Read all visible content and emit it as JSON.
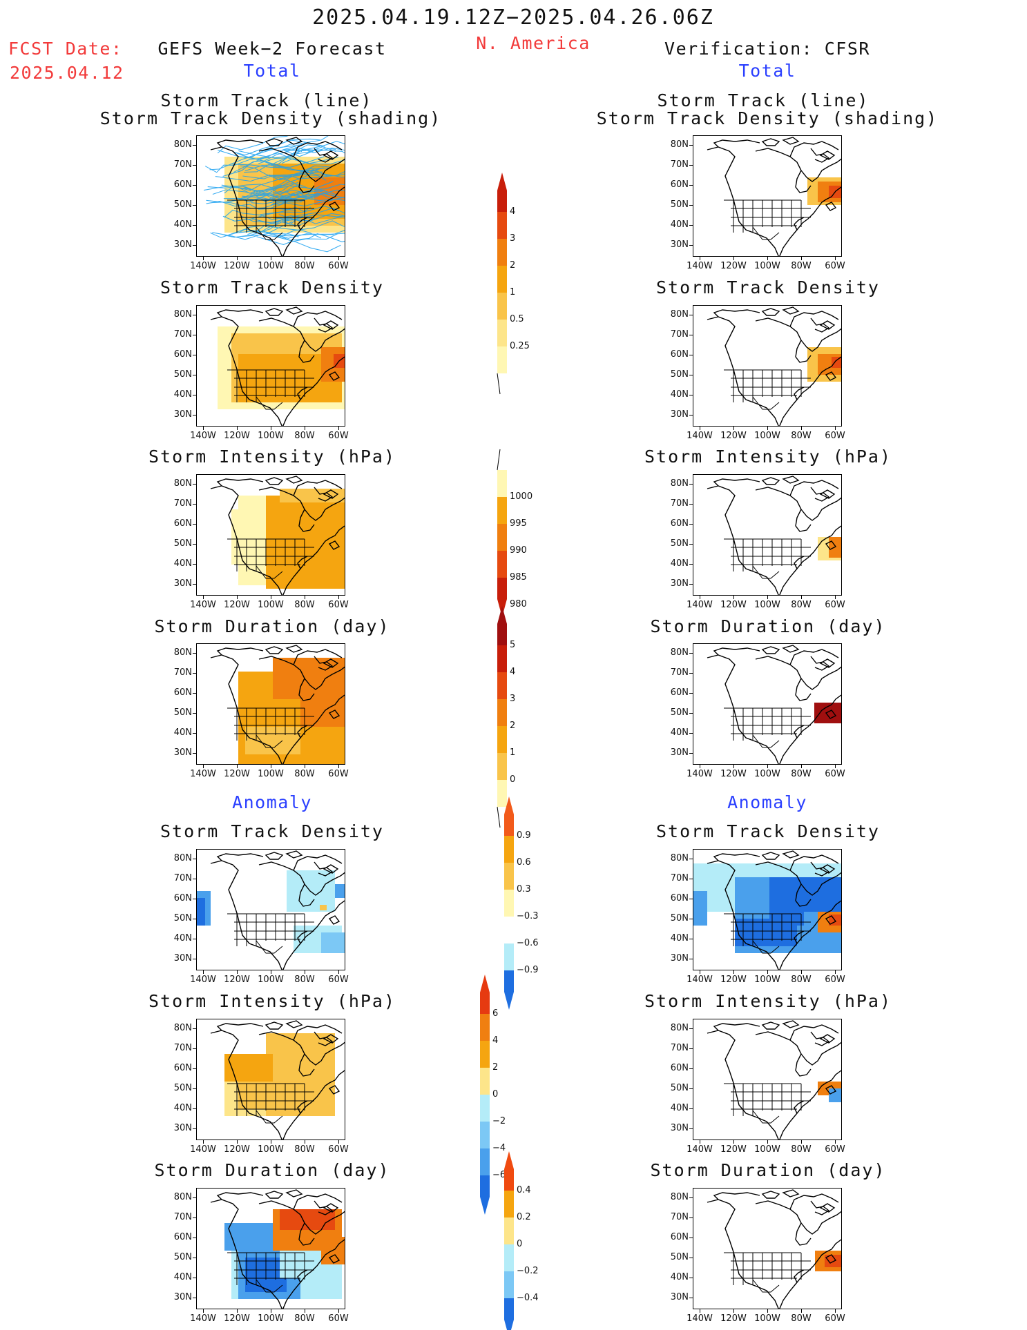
{
  "header": {
    "date_range": "2025.04.19.12Z−2025.04.26.06Z",
    "region": "N. America",
    "fcst_label": "FCST Date:",
    "fcst_date": "2025.04.12",
    "left_title": "GEFS Week−2 Forecast",
    "right_title": "Verification: CFSR"
  },
  "sections": {
    "total": "Total",
    "anomaly": "Anomaly"
  },
  "panel_titles": {
    "track_line": "Storm Track (line)",
    "track_shading": "Storm Track Density (shading)",
    "density": "Storm Track Density",
    "intensity": "Storm Intensity (hPa)",
    "duration": "Storm Duration (day)"
  },
  "axes": {
    "lat": [
      "80N",
      "70N",
      "60N",
      "50N",
      "40N",
      "30N"
    ],
    "lon": [
      "140W",
      "120W",
      "100W",
      "80W",
      "60W"
    ]
  },
  "colorbars": {
    "density": [
      "4",
      "3",
      "2",
      "1",
      "0.5",
      "0.25"
    ],
    "intensity": [
      "1000",
      "995",
      "990",
      "985",
      "980"
    ],
    "duration": [
      "5",
      "4",
      "3",
      "2",
      "1",
      "0"
    ],
    "density_anom": [
      "0.9",
      "0.6",
      "0.3",
      "−0.3",
      "−0.6",
      "−0.9"
    ],
    "intensity_anom": [
      "6",
      "4",
      "2",
      "0",
      "−2",
      "−4",
      "−6"
    ],
    "duration_anom": [
      "0.4",
      "0.2",
      "0",
      "−0.2",
      "−0.4"
    ]
  },
  "colors": {
    "title_red": "#f23a3a",
    "section_blue": "#2a3fff",
    "warm": [
      "#fff7b3",
      "#fde58a",
      "#f9c44a",
      "#f5a510",
      "#f07f10",
      "#e64a10",
      "#c81e0a",
      "#a00f0f"
    ],
    "cool": [
      "#ffffff",
      "#b4ecf8",
      "#7cc8f5",
      "#4aa0ec",
      "#1e6ee0"
    ]
  }
}
